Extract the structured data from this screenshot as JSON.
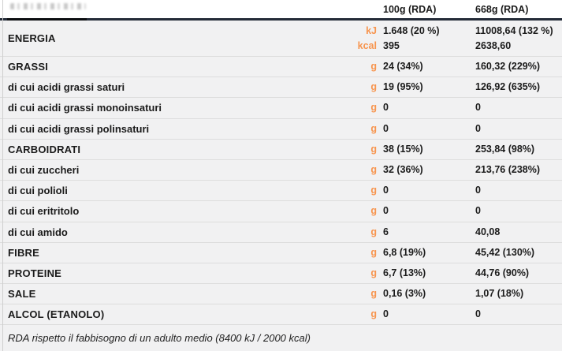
{
  "header": {
    "col_100g": "100g (RDA)",
    "col_668g": "668g (RDA)"
  },
  "rows": [
    {
      "label": "ENERGIA",
      "major": true,
      "units": [
        "kJ",
        "kcal"
      ],
      "per100": [
        "1.648 (20 %)",
        "395"
      ],
      "per668": [
        "11008,64 (132 %)",
        "2638,60"
      ]
    },
    {
      "label": "GRASSI",
      "major": true,
      "units": [
        "g"
      ],
      "per100": [
        "24 (34%)"
      ],
      "per668": [
        "160,32 (229%)"
      ]
    },
    {
      "label": "di cui acidi grassi saturi",
      "major": false,
      "units": [
        "g"
      ],
      "per100": [
        "19 (95%)"
      ],
      "per668": [
        "126,92 (635%)"
      ]
    },
    {
      "label": "di cui acidi grassi monoinsaturi",
      "major": false,
      "units": [
        "g"
      ],
      "per100": [
        "0"
      ],
      "per668": [
        "0"
      ]
    },
    {
      "label": "di cui acidi grassi polinsaturi",
      "major": false,
      "units": [
        "g"
      ],
      "per100": [
        "0"
      ],
      "per668": [
        "0"
      ]
    },
    {
      "label": "CARBOIDRATI",
      "major": true,
      "units": [
        "g"
      ],
      "per100": [
        "38 (15%)"
      ],
      "per668": [
        "253,84 (98%)"
      ]
    },
    {
      "label": "di cui zuccheri",
      "major": false,
      "units": [
        "g"
      ],
      "per100": [
        "32 (36%)"
      ],
      "per668": [
        "213,76 (238%)"
      ]
    },
    {
      "label": "di cui polioli",
      "major": false,
      "units": [
        "g"
      ],
      "per100": [
        "0"
      ],
      "per668": [
        "0"
      ]
    },
    {
      "label": "di cui eritritolo",
      "major": false,
      "units": [
        "g"
      ],
      "per100": [
        "0"
      ],
      "per668": [
        "0"
      ]
    },
    {
      "label": "di cui amido",
      "major": false,
      "units": [
        "g"
      ],
      "per100": [
        "6"
      ],
      "per668": [
        "40,08"
      ]
    },
    {
      "label": "FIBRE",
      "major": true,
      "units": [
        "g"
      ],
      "per100": [
        "6,8 (19%)"
      ],
      "per668": [
        "45,42 (130%)"
      ]
    },
    {
      "label": "PROTEINE",
      "major": true,
      "units": [
        "g"
      ],
      "per100": [
        "6,7 (13%)"
      ],
      "per668": [
        "44,76 (90%)"
      ]
    },
    {
      "label": "SALE",
      "major": true,
      "units": [
        "g"
      ],
      "per100": [
        "0,16 (3%)"
      ],
      "per668": [
        "1,07 (18%)"
      ]
    },
    {
      "label": "ALCOL (ETANOLO)",
      "major": true,
      "units": [
        "g"
      ],
      "per100": [
        "0"
      ],
      "per668": [
        "0"
      ]
    }
  ],
  "footnote": "RDA rispetto il fabbisogno di un adulto medio (8400 kJ / 2000 kcal)",
  "colors": {
    "accent_orange": "#F7954F",
    "header_divider": "#242B38",
    "row_background": "#F1F1F2",
    "row_divider": "#DDDDDD"
  }
}
